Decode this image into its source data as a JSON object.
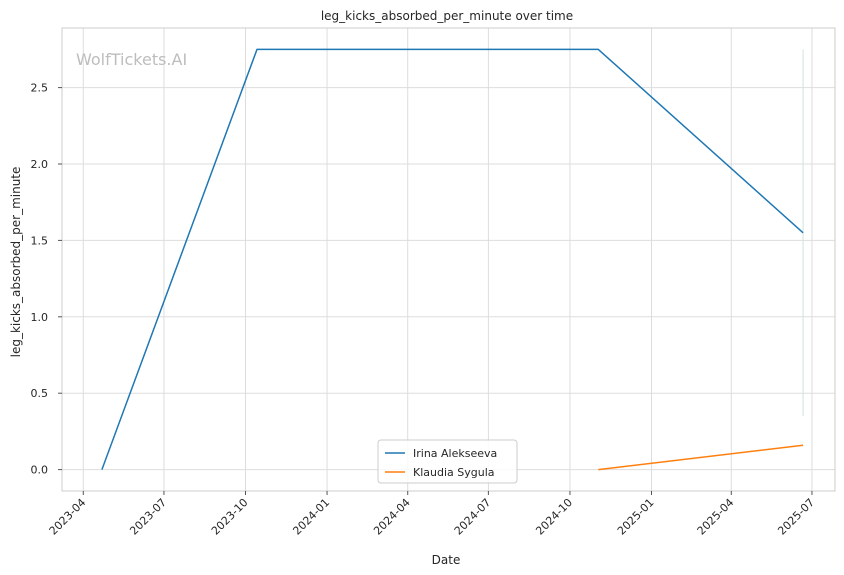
{
  "chart_data": {
    "type": "line",
    "title": "leg_kicks_absorbed_per_minute over time",
    "xlabel": "Date",
    "ylabel": "leg_kicks_absorbed_per_minute",
    "watermark": "WolfTickets.AI",
    "x_ticks": [
      "2023-04",
      "2023-07",
      "2023-10",
      "2024-01",
      "2024-04",
      "2024-07",
      "2024-10",
      "2025-01",
      "2025-04",
      "2025-07"
    ],
    "y_ticks": [
      0.0,
      0.5,
      1.0,
      1.5,
      2.0,
      2.5
    ],
    "y_tick_labels": [
      "0.0",
      "0.5",
      "1.0",
      "1.5",
      "2.0",
      "2.5"
    ],
    "xlim": [
      "2023-03-08",
      "2025-07-27"
    ],
    "ylim": [
      -0.14,
      2.89
    ],
    "grid": true,
    "legend_position": "lower-center",
    "series": [
      {
        "name": "Irina Alekseeva",
        "color": "#1f77b4",
        "points": [
          {
            "x": "2023-04-22",
            "y": 0.0
          },
          {
            "x": "2023-10-14",
            "y": 2.75
          },
          {
            "x": "2024-11-02",
            "y": 2.75
          },
          {
            "x": "2025-06-21",
            "y": 1.55
          }
        ]
      },
      {
        "name": "Klaudia Sygula",
        "color": "#ff7f0e",
        "points": [
          {
            "x": "2024-11-02",
            "y": 0.0
          },
          {
            "x": "2025-06-21",
            "y": 0.16
          }
        ]
      }
    ],
    "annotations": [
      {
        "type": "vertical-line",
        "x": "2025-06-21",
        "y_range": [
          0.35,
          2.75
        ],
        "color": "#cfe6d7"
      }
    ]
  }
}
